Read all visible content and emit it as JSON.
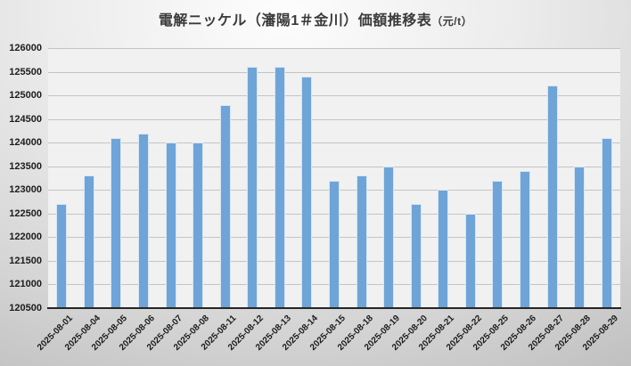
{
  "title": {
    "main": "電解ニッケル（瀋陽1＃金川）価額推移表",
    "unit": "（元/t）"
  },
  "chart_data": {
    "type": "bar",
    "title": "電解ニッケル（瀋陽1＃金川）価額推移表（元/t）",
    "xlabel": "",
    "ylabel": "",
    "categories": [
      "2025-08-01",
      "2025-08-04",
      "2025-08-05",
      "2025-08-06",
      "2025-08-07",
      "2025-08-08",
      "2025-08-11",
      "2025-08-12",
      "2025-08-13",
      "2025-08-14",
      "2025-08-15",
      "2025-08-18",
      "2025-08-19",
      "2025-08-20",
      "2025-08-21",
      "2025-08-22",
      "2025-08-25",
      "2025-08-26",
      "2025-08-27",
      "2025-08-28",
      "2025-08-29"
    ],
    "values": [
      122700,
      123300,
      124100,
      124200,
      124000,
      124000,
      124800,
      125600,
      125600,
      125400,
      123200,
      123300,
      123500,
      122700,
      123000,
      122500,
      123200,
      123400,
      125200,
      123500,
      124100
    ],
    "ylim": [
      120500,
      126000
    ],
    "ytick_step": 500,
    "yticks": [
      126000,
      125500,
      125000,
      124500,
      124000,
      123500,
      123000,
      122500,
      122000,
      121500,
      121000,
      120500
    ],
    "grid": true,
    "legend": false,
    "colors": {
      "bar_fill": "#6fa4d8",
      "bar_border": "#d8e6f4",
      "plot_background": "#f1f1f1",
      "gridline": "#c4c4c4",
      "axis_line": "#262626",
      "label_text": "#1c1c1c"
    }
  }
}
